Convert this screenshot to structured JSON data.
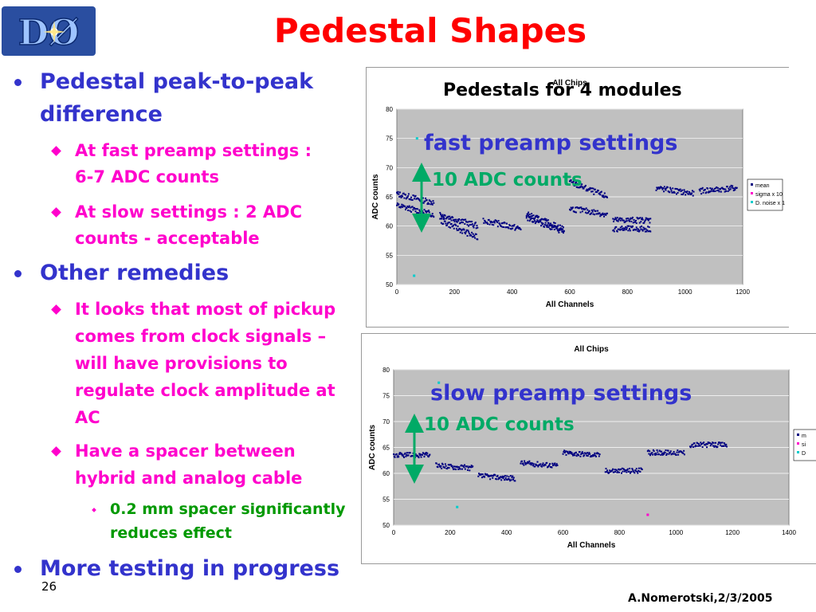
{
  "logo": {
    "text": "DØ"
  },
  "title": "Pedestal Shapes",
  "bullets": {
    "b1_line1": "Pedestal peak-to-peak",
    "b1_line2": "difference",
    "b1_sub1_line1": "At fast preamp settings :",
    "b1_sub1_line2": "6-7 ADC counts",
    "b1_sub2_line1": "At slow settings : 2 ADC",
    "b1_sub2_line2": "counts - acceptable",
    "b2_line1": "Other remedies",
    "b2_sub1_line1": "It looks that most of pickup",
    "b2_sub1_line2": "comes from clock signals –",
    "b2_sub1_line3": "will have provisions to",
    "b2_sub1_line4": "regulate clock amplitude at",
    "b2_sub1_line5": "AC",
    "b2_sub2_line1": "Have a spacer between",
    "b2_sub2_line2": "hybrid and analog cable",
    "b2_sub2_sub1_line1": "0.2 mm spacer significantly",
    "b2_sub2_sub1_line2": "reduces effect",
    "b3_line1": "More testing in progress"
  },
  "overlay": {
    "title1": "Pedestals for 4 modules",
    "fast_label": "fast preamp settings",
    "slow_label": "slow preamp settings",
    "adc_label1": "10 ADC counts",
    "adc_label2": "10 ADC counts"
  },
  "footer": {
    "slide_number": "26",
    "author": "A.Nomerotski,2/3/2005"
  },
  "colors": {
    "title": "#ff0000",
    "level1": "#3333cc",
    "level2": "#ff00cc",
    "level3": "#009900",
    "adc": "#00aa66",
    "series_mean": "#000080",
    "series_sigma": "#ff00cc",
    "series_noise": "#00cccc"
  },
  "chart_data": [
    {
      "type": "scatter",
      "title": "All Chips",
      "xlabel": "All Channels",
      "ylabel": "ADC counts",
      "xlim": [
        0,
        1200
      ],
      "ylim": [
        50,
        80
      ],
      "xticks": [
        "0",
        "200",
        "400",
        "600",
        "800",
        "1000",
        "1200"
      ],
      "yticks": [
        "50",
        "55",
        "60",
        "65",
        "70",
        "75",
        "80"
      ],
      "grid": true,
      "legend_position": "right",
      "legend": [
        "mean",
        "sigma x 10",
        "D. noise x 1"
      ],
      "series": [
        {
          "name": "mean",
          "segments": [
            {
              "x": [
                0,
                128
              ],
              "y": [
                65.5,
                64.0
              ]
            },
            {
              "x": [
                0,
                128
              ],
              "y": [
                63.5,
                62.0
              ]
            },
            {
              "x": [
                150,
                280
              ],
              "y": [
                62.0,
                60.0
              ]
            },
            {
              "x": [
                150,
                280
              ],
              "y": [
                61.0,
                58.0
              ]
            },
            {
              "x": [
                300,
                430
              ],
              "y": [
                61.0,
                59.5
              ]
            },
            {
              "x": [
                450,
                580
              ],
              "y": [
                62.0,
                59.5
              ]
            },
            {
              "x": [
                450,
                580
              ],
              "y": [
                61.5,
                59.0
              ]
            },
            {
              "x": [
                600,
                730
              ],
              "y": [
                67.5,
                65.0
              ]
            },
            {
              "x": [
                600,
                730
              ],
              "y": [
                63.0,
                62.0
              ]
            },
            {
              "x": [
                750,
                880
              ],
              "y": [
                61.0,
                61.0
              ]
            },
            {
              "x": [
                750,
                880
              ],
              "y": [
                59.5,
                59.5
              ]
            },
            {
              "x": [
                900,
                1030
              ],
              "y": [
                66.5,
                65.5
              ]
            },
            {
              "x": [
                1050,
                1180
              ],
              "y": [
                66.0,
                66.5
              ]
            }
          ]
        },
        {
          "name": "sigma x 10",
          "points": []
        },
        {
          "name": "D. noise x 1",
          "points": [
            [
              60,
              51.5
            ],
            [
              70,
              75
            ]
          ]
        }
      ]
    },
    {
      "type": "scatter",
      "title": "All Chips",
      "xlabel": "All Channels",
      "ylabel": "ADC counts",
      "xlim": [
        0,
        1400
      ],
      "ylim": [
        50,
        80
      ],
      "xticks": [
        "0",
        "200",
        "400",
        "600",
        "800",
        "1000",
        "1200",
        "1400"
      ],
      "yticks": [
        "50",
        "55",
        "60",
        "65",
        "70",
        "75",
        "80"
      ],
      "grid": true,
      "legend_position": "right",
      "legend": [
        "m",
        "si",
        "D"
      ],
      "series": [
        {
          "name": "m",
          "segments": [
            {
              "x": [
                0,
                128
              ],
              "y": [
                63.5,
                63.5
              ]
            },
            {
              "x": [
                150,
                280
              ],
              "y": [
                61.5,
                61.0
              ]
            },
            {
              "x": [
                300,
                430
              ],
              "y": [
                59.5,
                59.0
              ]
            },
            {
              "x": [
                450,
                580
              ],
              "y": [
                62.0,
                61.5
              ]
            },
            {
              "x": [
                600,
                730
              ],
              "y": [
                64.0,
                63.5
              ]
            },
            {
              "x": [
                750,
                880
              ],
              "y": [
                60.5,
                60.5
              ]
            },
            {
              "x": [
                900,
                1030
              ],
              "y": [
                64.0,
                64.0
              ]
            },
            {
              "x": [
                1050,
                1180
              ],
              "y": [
                65.5,
                65.5
              ]
            }
          ]
        },
        {
          "name": "si",
          "points": [
            [
              900,
              52
            ]
          ]
        },
        {
          "name": "D",
          "points": [
            [
              160,
              77.5
            ],
            [
              225,
              53.5
            ]
          ]
        }
      ]
    }
  ]
}
